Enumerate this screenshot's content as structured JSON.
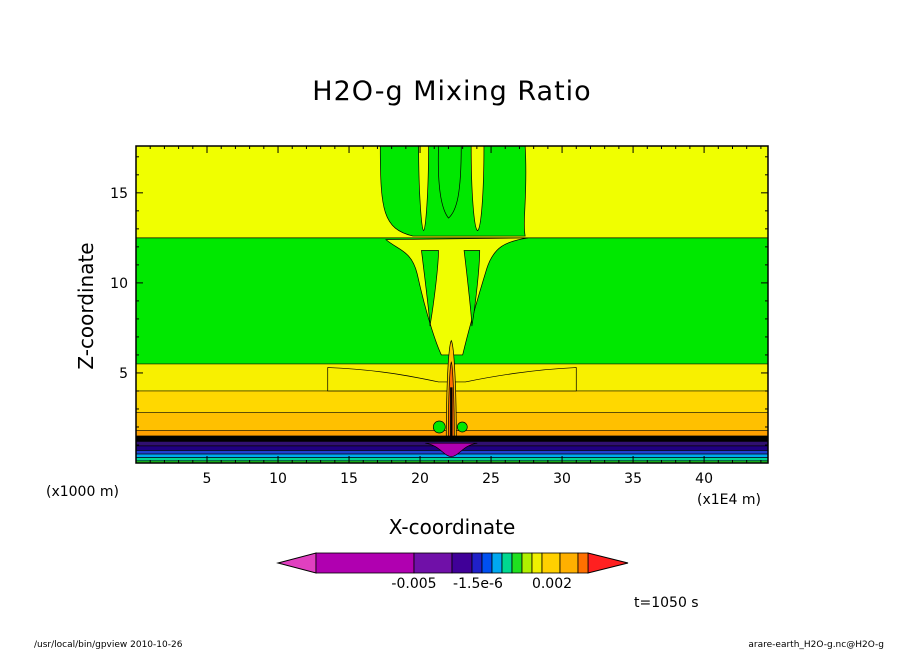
{
  "chart_data": {
    "type": "heatmap",
    "title": "H2O-g Mixing Ratio",
    "xlabel": "X-coordinate",
    "ylabel": "Z-coordinate",
    "x_unit": "(x1000 m)",
    "x_scale": "(x1E4 m)",
    "xlim": [
      0,
      44.5
    ],
    "ylim": [
      0,
      17.6
    ],
    "x_ticks": [
      5,
      10,
      15,
      20,
      25,
      30,
      35,
      40
    ],
    "x_tick_labels": [
      "5",
      "10",
      "15",
      "20",
      "25",
      "30",
      "35",
      "40"
    ],
    "y_ticks": [
      5,
      10,
      15
    ],
    "y_tick_labels": [
      "5",
      "10",
      "15"
    ],
    "time_label": "t=1050 s",
    "colorbar": {
      "colors": [
        "#e040c0",
        "#b000b0",
        "#7010a8",
        "#400098",
        "#2020c8",
        "#0050f0",
        "#00a8f0",
        "#00d890",
        "#20e020",
        "#b0f000",
        "#f0f000",
        "#ffd000",
        "#ffb000",
        "#ff7000",
        "#ff2020"
      ],
      "tick_labels": [
        "-0.005",
        "-1.5e-6",
        "0.002"
      ]
    },
    "background_layers": [
      {
        "z_from": 12.5,
        "z_to": 17.6,
        "color": "#f0ff00"
      },
      {
        "z_from": 5.5,
        "z_to": 12.5,
        "color": "#00e800"
      },
      {
        "z_from": 4.0,
        "z_to": 5.5,
        "color": "#f8f000"
      },
      {
        "z_from": 2.8,
        "z_to": 4.0,
        "color": "#ffd800"
      },
      {
        "z_from": 1.8,
        "z_to": 2.8,
        "color": "#ffc000"
      },
      {
        "z_from": 1.5,
        "z_to": 1.8,
        "color": "#ffa000"
      },
      {
        "z_from": 1.2,
        "z_to": 1.5,
        "color": "#000000"
      },
      {
        "z_from": 0.95,
        "z_to": 1.2,
        "color": "#301070"
      },
      {
        "z_from": 0.7,
        "z_to": 0.95,
        "color": "#200080"
      },
      {
        "z_from": 0.5,
        "z_to": 0.7,
        "color": "#2040d0"
      },
      {
        "z_from": 0.3,
        "z_to": 0.5,
        "color": "#00a8f0"
      },
      {
        "z_from": 0.12,
        "z_to": 0.3,
        "color": "#00d890"
      },
      {
        "z_from": 0.0,
        "z_to": 0.12,
        "color": "#20e020"
      }
    ],
    "plume_center_x": 22.2
  },
  "footer": {
    "left": "/usr/local/bin/gpview  2010-10-26",
    "right": "arare-earth_H2O-g.nc@H2O-g"
  }
}
